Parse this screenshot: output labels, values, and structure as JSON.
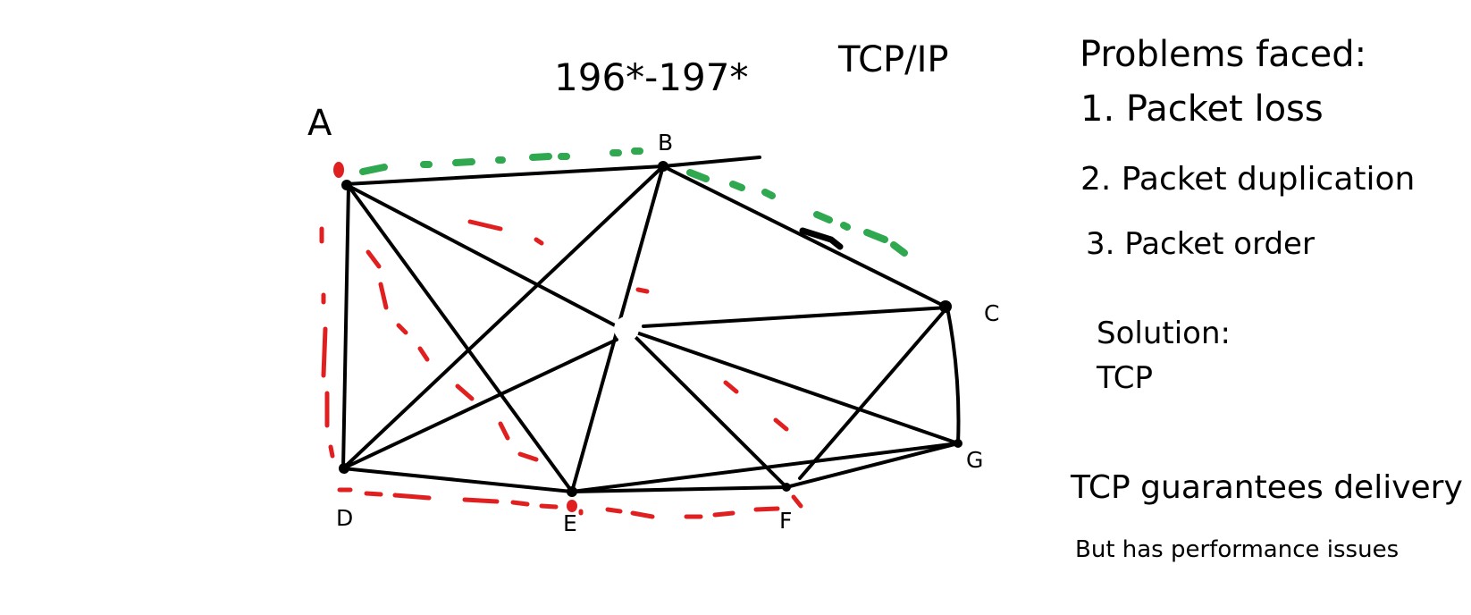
{
  "diagram": {
    "title": "196*-197*",
    "protocol": "TCP/IP",
    "nodes": {
      "A": "A",
      "B": "B",
      "C": "C",
      "D": "D",
      "E": "E",
      "F": "F",
      "G": "G"
    },
    "edges": [
      [
        "A",
        "B"
      ],
      [
        "B",
        "C"
      ],
      [
        "A",
        "D"
      ],
      [
        "D",
        "E"
      ],
      [
        "E",
        "F"
      ],
      [
        "F",
        "G"
      ],
      [
        "C",
        "G"
      ],
      [
        "A",
        "E"
      ],
      [
        "D",
        "B"
      ],
      [
        "B",
        "E"
      ],
      [
        "A",
        "center"
      ],
      [
        "center",
        "C"
      ],
      [
        "center",
        "D"
      ],
      [
        "center",
        "F"
      ],
      [
        "center",
        "G"
      ],
      [
        "E",
        "G"
      ],
      [
        "C",
        "F"
      ]
    ],
    "colors": {
      "links": "#000000",
      "path_green": "#2fa84f",
      "path_red": "#e02020"
    }
  },
  "notes": {
    "problems_heading": "Problems faced:",
    "problem_1": "1. Packet loss",
    "problem_2": "2. Packet duplication",
    "problem_3": "3. Packet order",
    "solution_heading": "Solution:",
    "solution_value": "TCP",
    "guarantee": "TCP guarantees delivery",
    "caveat": "But has performance issues"
  }
}
